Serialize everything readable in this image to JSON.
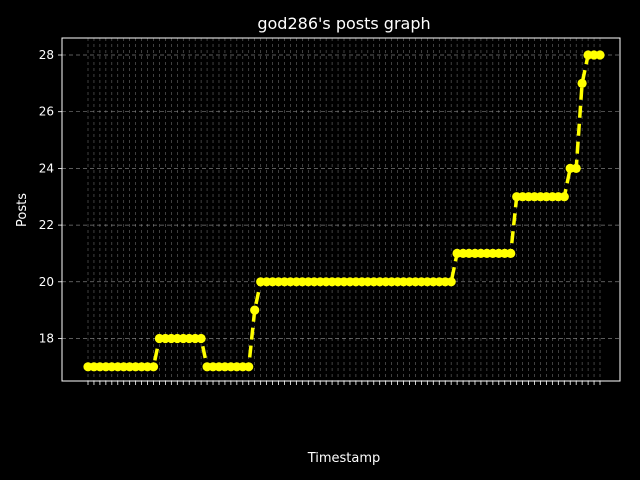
{
  "chart_data": {
    "type": "line",
    "title": "god286's posts graph",
    "xlabel": "Timestamp",
    "ylabel": "Posts",
    "ylim": [
      16.5,
      28.6
    ],
    "yticks": [
      18,
      20,
      22,
      24,
      26,
      28
    ],
    "grid": true,
    "grid_style": "dashed",
    "background": "#000000",
    "line_color": "#ffff00",
    "line_style": "dashed",
    "marker": "circle",
    "x_tick_labels_visible": "overlapping, rotated 45°, illegible",
    "series": [
      {
        "values": [
          17,
          17,
          17,
          17,
          17,
          17,
          17,
          17,
          17,
          17,
          17,
          17,
          18,
          18,
          18,
          18,
          18,
          18,
          18,
          18,
          17,
          17,
          17,
          17,
          17,
          17,
          17,
          17,
          19,
          20,
          20,
          20,
          20,
          20,
          20,
          20,
          20,
          20,
          20,
          20,
          20,
          20,
          20,
          20,
          20,
          20,
          20,
          20,
          20,
          20,
          20,
          20,
          20,
          20,
          20,
          20,
          20,
          20,
          20,
          20,
          20,
          20,
          21,
          21,
          21,
          21,
          21,
          21,
          21,
          21,
          21,
          21,
          23,
          23,
          23,
          23,
          23,
          23,
          23,
          23,
          23,
          24,
          24,
          27,
          28,
          28,
          28
        ]
      }
    ]
  }
}
